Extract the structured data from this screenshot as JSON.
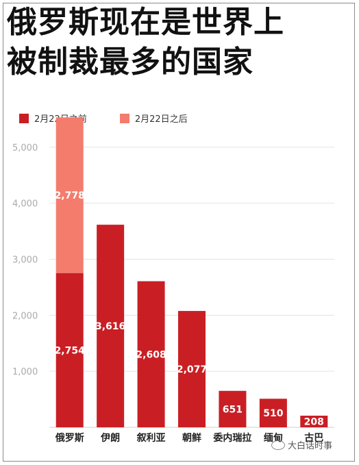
{
  "title_lines": [
    "俄罗斯现在是世界上",
    "被制裁最多的国家"
  ],
  "watermark": "大白话时事",
  "colors": {
    "before": "#c91f24",
    "after": "#f47c6c",
    "grid": "#e3e3e3"
  },
  "chart_data": {
    "type": "bar",
    "stacked": true,
    "title": "俄罗斯现在是世界上被制裁最多的国家",
    "categories": [
      "俄罗斯",
      "伊朗",
      "叙利亚",
      "朝鲜",
      "委内瑞拉",
      "缅甸",
      "古巴"
    ],
    "series": [
      {
        "name": "2月22日之前",
        "values": [
          2754,
          3616,
          2608,
          2077,
          651,
          510,
          208
        ]
      },
      {
        "name": "2月22日之后",
        "values": [
          2778,
          0,
          0,
          0,
          0,
          0,
          0
        ]
      }
    ],
    "ylim": [
      0,
      5500
    ],
    "yticks": [
      1000,
      2000,
      3000,
      4000,
      5000
    ],
    "ytick_labels": [
      "1,000",
      "2,000",
      "3,000",
      "4,000",
      "5,000"
    ],
    "data_labels": {
      "before": [
        "2,754",
        "3,616",
        "2,608",
        "2,077",
        "651",
        "510",
        "208"
      ],
      "after": [
        "2,778",
        "",
        "",
        "",
        "",
        "",
        ""
      ]
    },
    "grid": true,
    "legend_position": "top-left"
  }
}
